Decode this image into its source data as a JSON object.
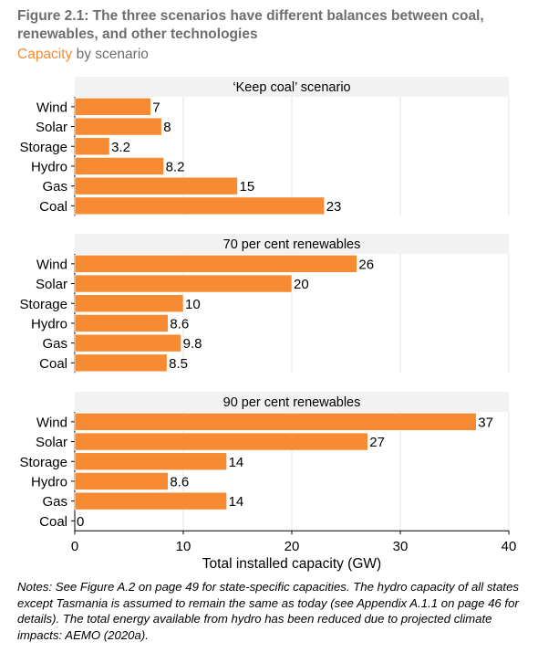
{
  "figure": {
    "title": "Figure 2.1: The three scenarios have different balances between coal, renewables, and other technologies",
    "subtitle_accent": "Capacity",
    "subtitle_rest": " by scenario",
    "notes": "Notes: See Figure A.2 on page 49 for state-specific capacities. The hydro capacity of all states except Tasmania is assumed to remain the same as today (see Appendix A.1.1 on page 46 for details). The total energy available from hydro has been reduced due to projected climate impacts: AEMO (2020a)."
  },
  "colors": {
    "bar": "#f68b33",
    "panel_header": "#f2f2f2",
    "gridline": "#e3e3e3",
    "title_grey": "#6d6e71"
  },
  "chart_data": {
    "type": "bar",
    "orientation": "horizontal",
    "facet": true,
    "categories": [
      "Wind",
      "Solar",
      "Storage",
      "Hydro",
      "Gas",
      "Coal"
    ],
    "xlabel": "Total installed capacity (GW)",
    "ylabel": "",
    "xlim": [
      0,
      40
    ],
    "xticks": [
      0,
      10,
      20,
      30,
      40
    ],
    "grid": true,
    "panels": [
      {
        "title": "‘Keep coal’ scenario",
        "values": [
          7,
          8,
          3.2,
          8.2,
          15,
          23
        ],
        "labels": [
          "7",
          "8",
          "3.2",
          "8.2",
          "15",
          "23"
        ]
      },
      {
        "title": "70 per cent renewables",
        "values": [
          26,
          20,
          10,
          8.6,
          9.8,
          8.5
        ],
        "labels": [
          "26",
          "20",
          "10",
          "8.6",
          "9.8",
          "8.5"
        ]
      },
      {
        "title": "90 per cent renewables",
        "values": [
          37,
          27,
          14,
          8.6,
          14,
          0
        ],
        "labels": [
          "37",
          "27",
          "14",
          "8.6",
          "14",
          "0"
        ]
      }
    ]
  }
}
